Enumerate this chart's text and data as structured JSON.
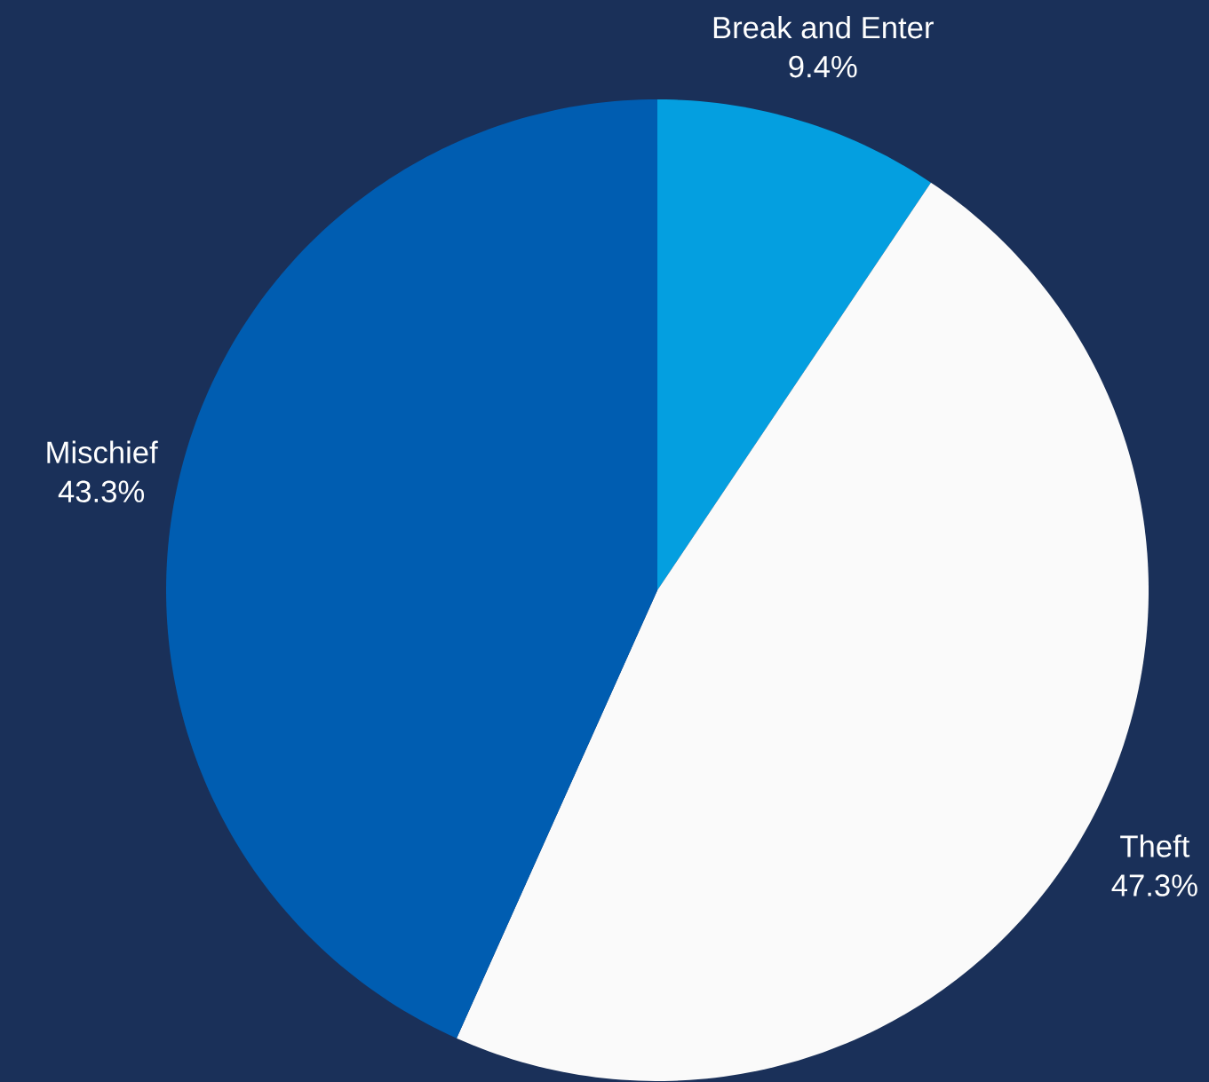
{
  "chart_data": {
    "type": "pie",
    "categories": [
      "Break and Enter",
      "Theft",
      "Mischief"
    ],
    "values": [
      9.4,
      47.3,
      43.3
    ],
    "value_labels": [
      "9.4%",
      "47.3%",
      "43.3%"
    ],
    "colors": [
      "#049fe0",
      "#fafafa",
      "#005db1"
    ]
  }
}
